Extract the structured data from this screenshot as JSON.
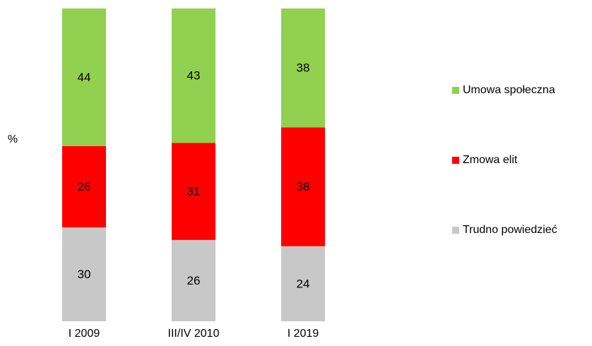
{
  "chart_data": {
    "type": "stacked_bar",
    "y_label": "%",
    "categories": [
      "I 2009",
      "III/IV 2010",
      "I 2019"
    ],
    "series": [
      {
        "name": "Trudno powiedzieć",
        "color": "#c8c8c8",
        "values": [
          30,
          26,
          24
        ]
      },
      {
        "name": "Zmowa elit",
        "color": "#ff0000",
        "values": [
          26,
          31,
          38
        ]
      },
      {
        "name": "Umowa społeczna",
        "color": "#92d050",
        "values": [
          44,
          43,
          38
        ]
      }
    ],
    "ylim": [
      0,
      100
    ],
    "legend": "right"
  }
}
